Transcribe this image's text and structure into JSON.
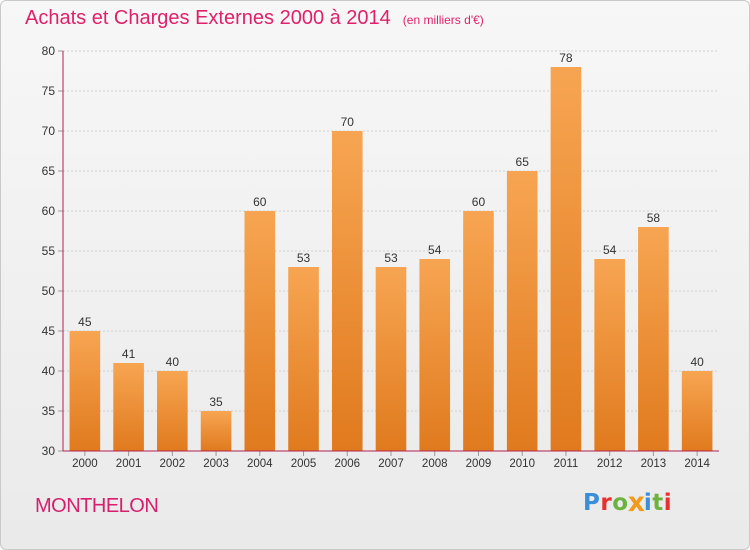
{
  "title": "Achats et Charges Externes 2000 à 2014",
  "unit": "(en milliers d'€)",
  "commune": "MONTHELON",
  "logo": "Proxiti",
  "colors": {
    "title": "#e0206a",
    "bar_light": "#f7a552",
    "bar_dark": "#e07a1e",
    "grid": "#cfcfcf",
    "axis": "#b3204d"
  },
  "chart_data": {
    "type": "bar",
    "categories": [
      "2000",
      "2001",
      "2002",
      "2003",
      "2004",
      "2005",
      "2006",
      "2007",
      "2008",
      "2009",
      "2010",
      "2011",
      "2012",
      "2013",
      "2014"
    ],
    "values": [
      45,
      41,
      40,
      35,
      60,
      53,
      70,
      53,
      54,
      60,
      65,
      78,
      54,
      58,
      40
    ],
    "title": "Achats et Charges Externes 2000 à 2014",
    "subtitle": "(en milliers d'€)",
    "xlabel": "",
    "ylabel": "",
    "ylim": [
      30,
      80
    ],
    "yticks": [
      30,
      35,
      40,
      45,
      50,
      55,
      60,
      65,
      70,
      75,
      80
    ],
    "grid": true,
    "data_labels": true
  }
}
